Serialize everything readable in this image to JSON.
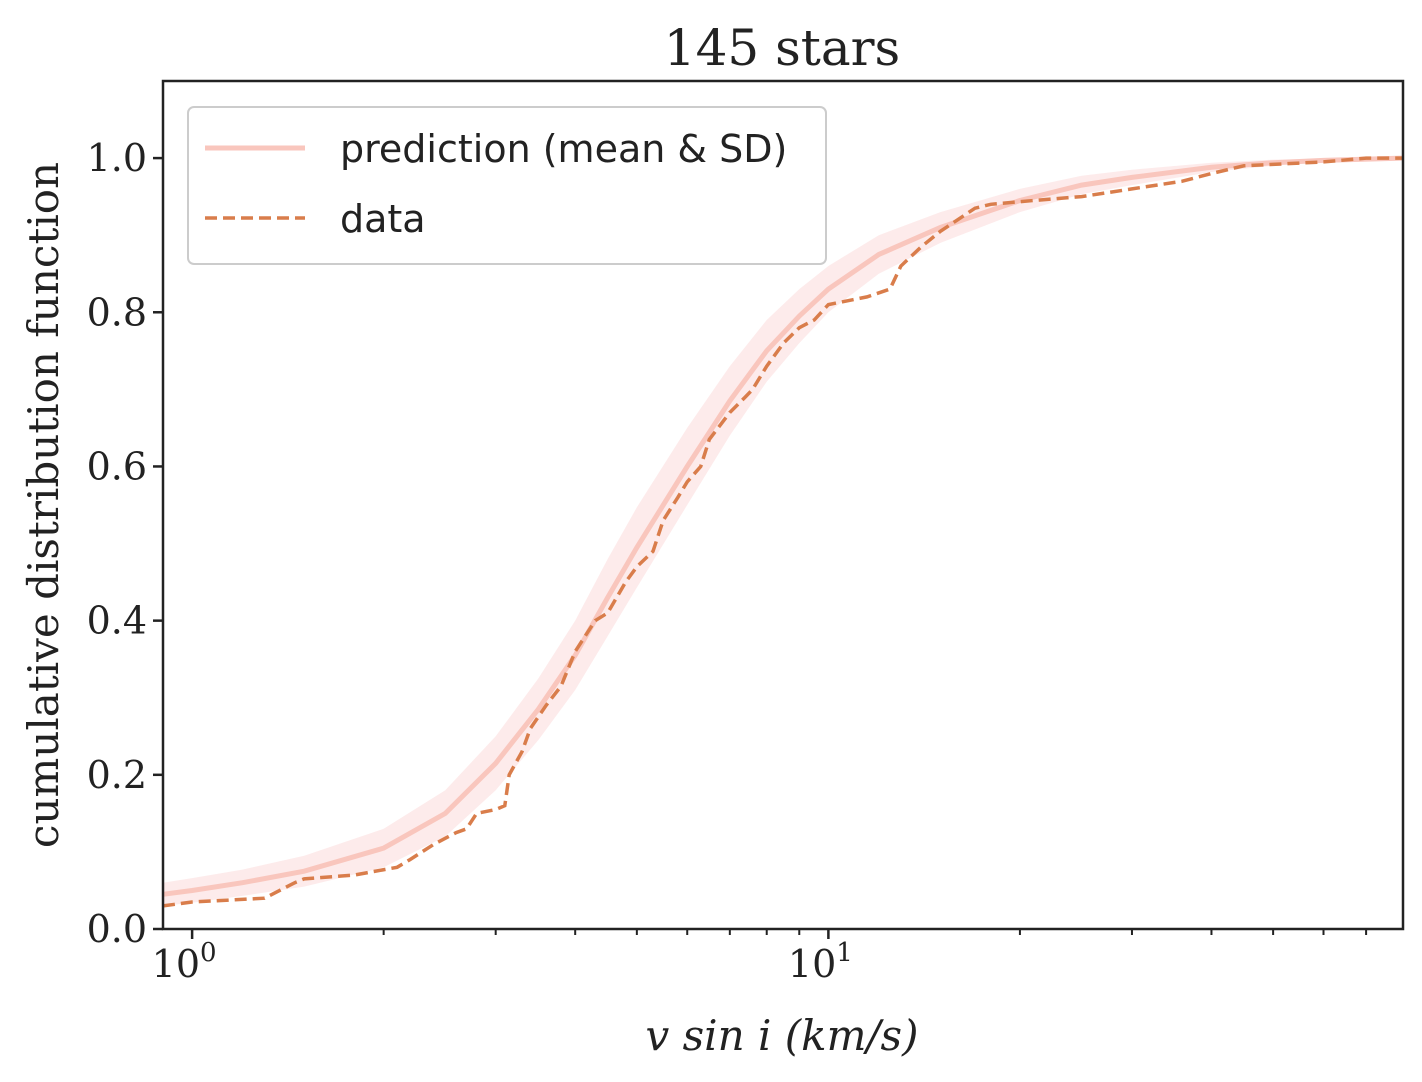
{
  "chart_data": {
    "type": "line",
    "title": "145 stars",
    "xlabel": "v sin i (km/s)",
    "ylabel": "cumulative distribution function",
    "xscale": "log",
    "xlim": [
      0.9,
      80
    ],
    "ylim": [
      0,
      1.1
    ],
    "y_ticks": [
      {
        "value": 0.0,
        "label": "0.0"
      },
      {
        "value": 0.2,
        "label": "0.2"
      },
      {
        "value": 0.4,
        "label": "0.4"
      },
      {
        "value": 0.6,
        "label": "0.6"
      },
      {
        "value": 0.8,
        "label": "0.8"
      },
      {
        "value": 1.0,
        "label": "1.0"
      }
    ],
    "x_major_ticks": [
      {
        "value": 1,
        "base": "10",
        "exp": "0"
      },
      {
        "value": 10,
        "base": "10",
        "exp": "1"
      }
    ],
    "x_minor_ticks": [
      2,
      3,
      4,
      5,
      6,
      7,
      8,
      9,
      20,
      30,
      40,
      50,
      60,
      70
    ],
    "legend": {
      "placement": "upper-left",
      "entries": [
        "prediction (mean & SD)",
        "data"
      ]
    },
    "series": [
      {
        "name": "prediction (mean & SD)",
        "style": "solid",
        "color": "#f9c6bd",
        "band_color": "#fbdedd",
        "x": [
          0.9,
          1.0,
          1.2,
          1.5,
          2.0,
          2.5,
          3.0,
          3.5,
          4.0,
          4.5,
          5.0,
          6.0,
          7.0,
          8.0,
          9.0,
          10,
          12,
          15,
          20,
          25,
          30,
          40,
          50,
          60,
          80
        ],
        "values": [
          0.045,
          0.05,
          0.06,
          0.075,
          0.105,
          0.15,
          0.215,
          0.285,
          0.355,
          0.43,
          0.495,
          0.6,
          0.685,
          0.75,
          0.795,
          0.83,
          0.875,
          0.91,
          0.945,
          0.965,
          0.975,
          0.988,
          0.994,
          0.997,
          1.0
        ],
        "sd": [
          0.015,
          0.016,
          0.017,
          0.02,
          0.025,
          0.03,
          0.035,
          0.04,
          0.045,
          0.05,
          0.052,
          0.05,
          0.045,
          0.04,
          0.035,
          0.03,
          0.025,
          0.02,
          0.015,
          0.012,
          0.01,
          0.006,
          0.004,
          0.002,
          0.0
        ]
      },
      {
        "name": "data",
        "style": "dashed",
        "color": "#d97d4b",
        "x": [
          0.9,
          1.0,
          1.3,
          1.45,
          1.5,
          1.8,
          2.1,
          2.2,
          2.4,
          2.6,
          2.7,
          2.8,
          3.0,
          3.1,
          3.15,
          3.3,
          3.4,
          3.6,
          3.8,
          4.0,
          4.3,
          4.5,
          4.8,
          5.0,
          5.3,
          5.5,
          5.8,
          6.0,
          6.3,
          6.5,
          7.0,
          7.4,
          7.6,
          8.0,
          8.5,
          9.0,
          9.5,
          10,
          11.5,
          12.5,
          13,
          14,
          15,
          17,
          18,
          21,
          25,
          30,
          36,
          40,
          45,
          60,
          70,
          80
        ],
        "values": [
          0.03,
          0.035,
          0.04,
          0.06,
          0.065,
          0.07,
          0.08,
          0.09,
          0.11,
          0.125,
          0.13,
          0.15,
          0.155,
          0.16,
          0.2,
          0.23,
          0.26,
          0.29,
          0.315,
          0.36,
          0.4,
          0.41,
          0.45,
          0.47,
          0.49,
          0.53,
          0.56,
          0.58,
          0.6,
          0.635,
          0.67,
          0.69,
          0.7,
          0.73,
          0.76,
          0.78,
          0.79,
          0.81,
          0.82,
          0.83,
          0.86,
          0.885,
          0.905,
          0.935,
          0.94,
          0.945,
          0.95,
          0.96,
          0.97,
          0.98,
          0.99,
          0.995,
          1.0,
          1.0
        ]
      }
    ]
  }
}
